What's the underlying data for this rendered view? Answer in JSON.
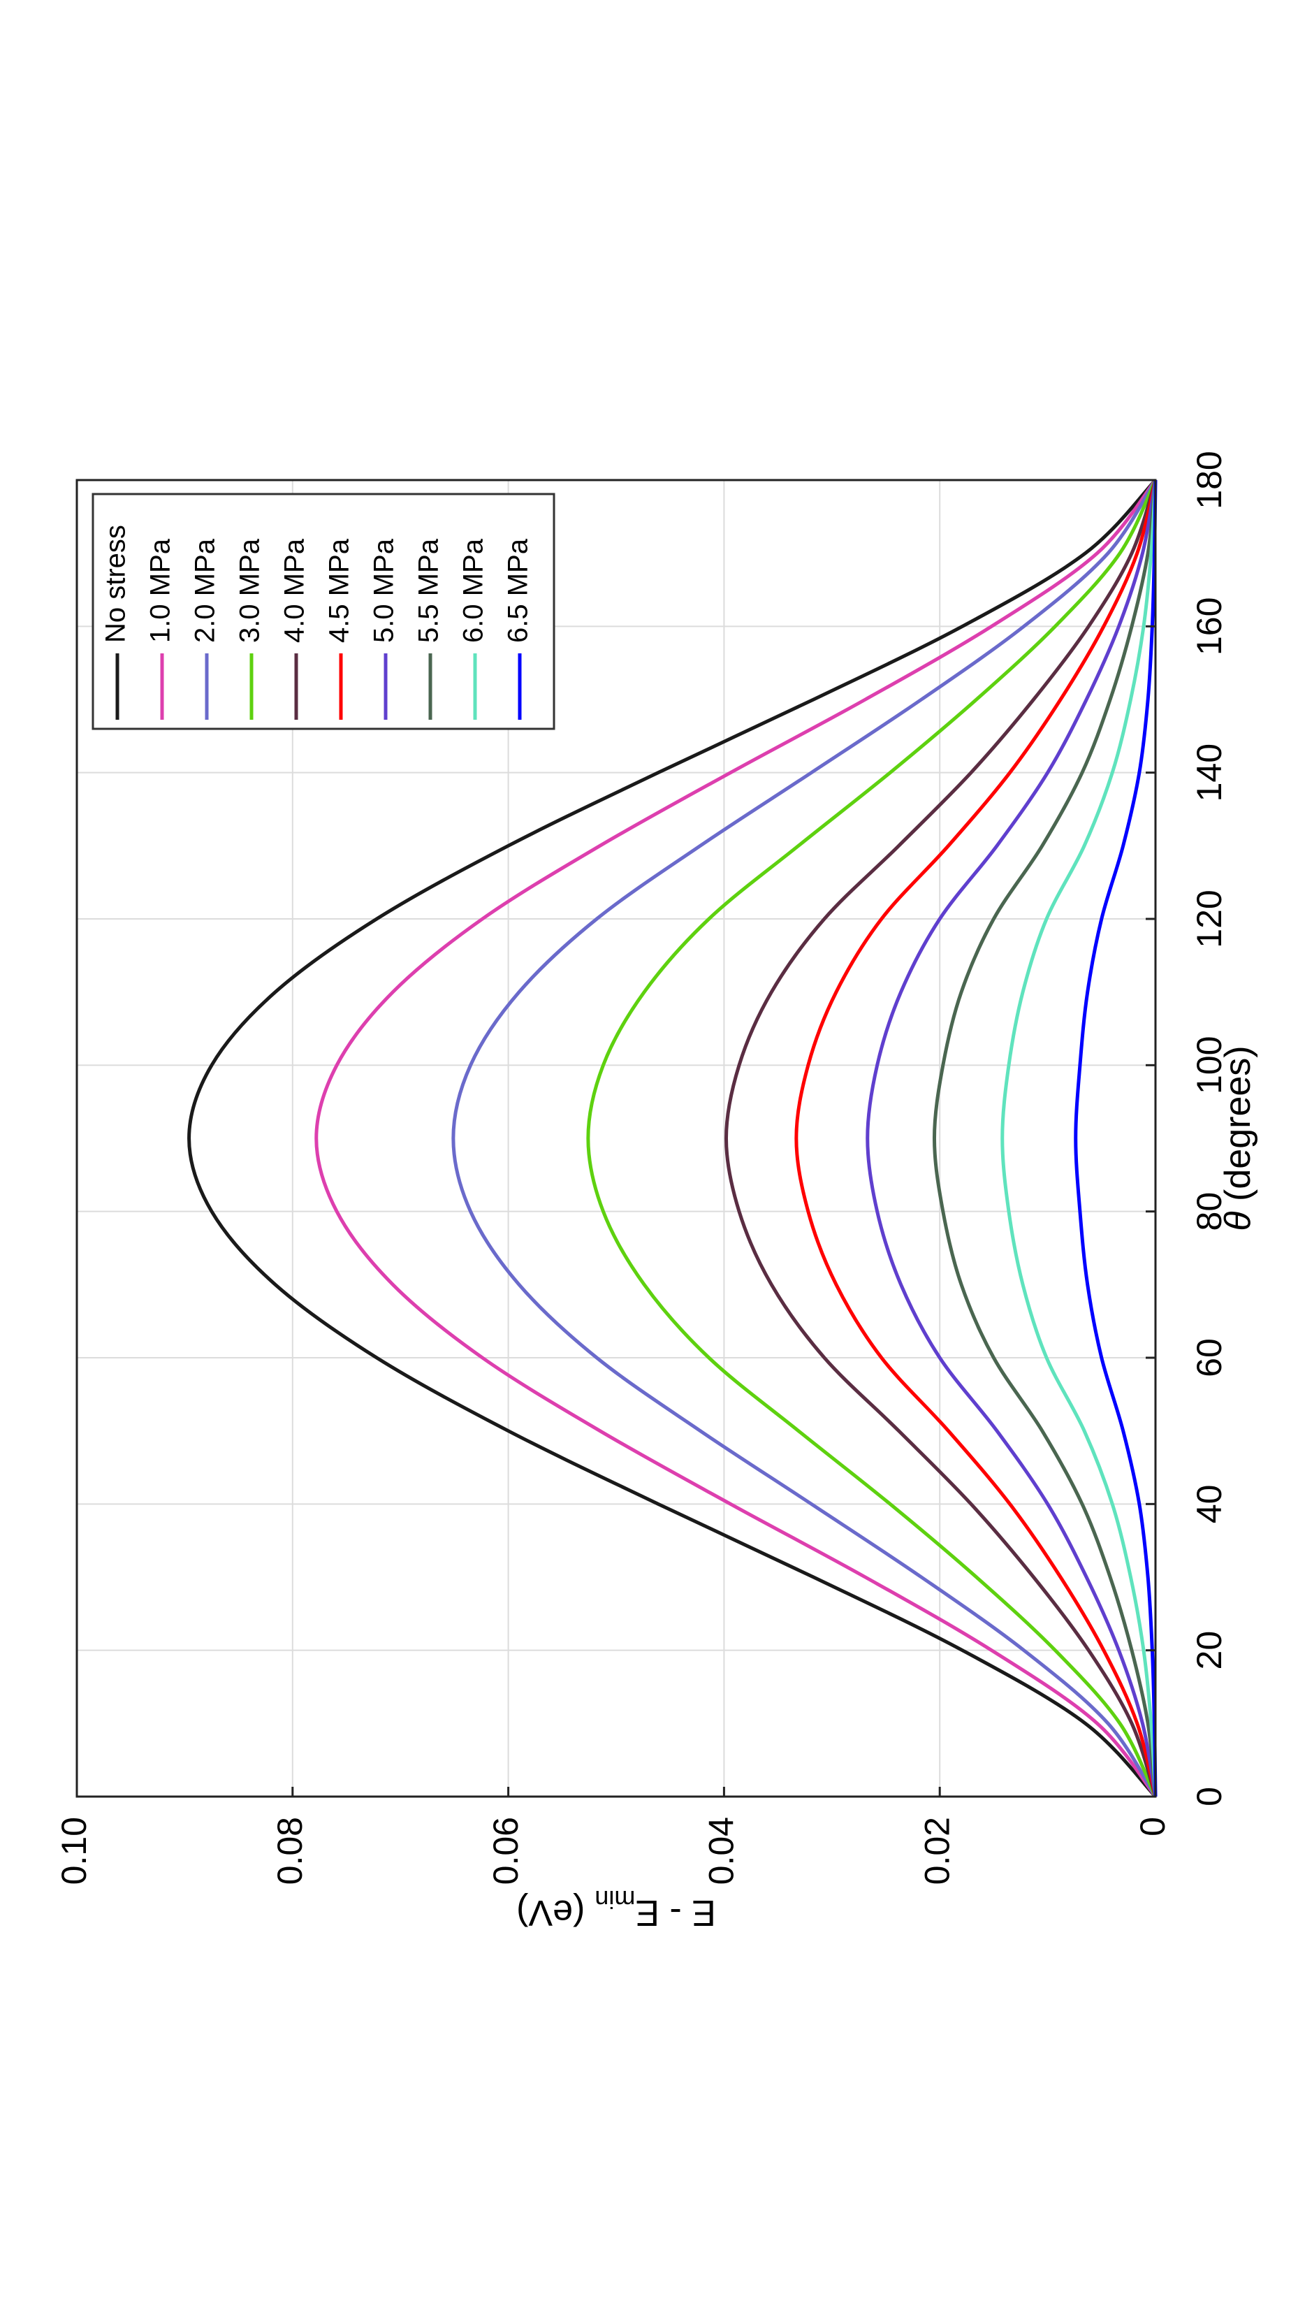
{
  "chart_data": {
    "type": "line",
    "orientation": "rotated 90 degrees counter-clockwise",
    "xlabel": "θ (degrees)",
    "ylabel": {
      "main": "E - E",
      "sub": "min",
      "unit": "(eV)"
    },
    "xlim": [
      0,
      180
    ],
    "ylim": [
      0,
      0.1
    ],
    "xticks": [
      0,
      20,
      40,
      60,
      80,
      100,
      120,
      140,
      160,
      180
    ],
    "xtick_labels": [
      "0",
      "20",
      "40",
      "60",
      "80",
      "100",
      "120",
      "140",
      "160",
      "180"
    ],
    "yticks": [
      0,
      0.02,
      0.04,
      0.06,
      0.08,
      0.1
    ],
    "ytick_labels": [
      "0",
      "0.02",
      "0.04",
      "0.06",
      "0.08",
      "0.10"
    ],
    "grid": true,
    "legend_placement": "upper-left of the rotated plot (top-left on screen)",
    "x": [
      0,
      10,
      20,
      30,
      40,
      50,
      60,
      70,
      80,
      90,
      100,
      110,
      120,
      130,
      140,
      150,
      160,
      170,
      180
    ],
    "series": [
      {
        "name": "No stress",
        "color": "#1a1a1a",
        "values": [
          0,
          0.0065,
          0.0179,
          0.0317,
          0.0461,
          0.06,
          0.0722,
          0.0816,
          0.0875,
          0.0896,
          0.0875,
          0.0816,
          0.0722,
          0.06,
          0.0461,
          0.0317,
          0.0179,
          0.0065,
          0
        ]
      },
      {
        "name": "1.0 MPa",
        "color": "#dd3fae",
        "values": [
          0,
          0.0054,
          0.0152,
          0.0269,
          0.0394,
          0.0515,
          0.0624,
          0.0707,
          0.0759,
          0.0778,
          0.0759,
          0.0707,
          0.0624,
          0.0515,
          0.0394,
          0.0269,
          0.0152,
          0.0054,
          0
        ]
      },
      {
        "name": "2.0 MPa",
        "color": "#6a6acb",
        "values": [
          0,
          0.0044,
          0.0122,
          0.0217,
          0.0319,
          0.0422,
          0.0518,
          0.059,
          0.0635,
          0.0651,
          0.0635,
          0.059,
          0.0518,
          0.0422,
          0.0319,
          0.0217,
          0.0122,
          0.0044,
          0
        ]
      },
      {
        "name": "3.0 MPa",
        "color": "#5ed10f",
        "values": [
          0,
          0.0033,
          0.0093,
          0.0166,
          0.0246,
          0.0331,
          0.0414,
          0.0474,
          0.0512,
          0.0526,
          0.0512,
          0.0474,
          0.0414,
          0.0331,
          0.0246,
          0.0166,
          0.0093,
          0.0033,
          0
        ]
      },
      {
        "name": "4.0 MPa",
        "color": "#5a2d42",
        "values": [
          0,
          0.0022,
          0.0062,
          0.0113,
          0.0171,
          0.0238,
          0.0307,
          0.0356,
          0.0386,
          0.0398,
          0.0386,
          0.0356,
          0.0307,
          0.0238,
          0.0171,
          0.0113,
          0.0062,
          0.0022,
          0
        ]
      },
      {
        "name": "4.5 MPa",
        "color": "#ff0000",
        "values": [
          0,
          0.0017,
          0.0048,
          0.0088,
          0.0135,
          0.0192,
          0.0254,
          0.0296,
          0.0322,
          0.0333,
          0.0322,
          0.0296,
          0.0254,
          0.0192,
          0.0135,
          0.0088,
          0.0048,
          0.0017,
          0
        ]
      },
      {
        "name": "5.0 MPa",
        "color": "#5f3fce",
        "values": [
          0,
          0.0012,
          0.0034,
          0.0064,
          0.01,
          0.0147,
          0.02,
          0.0236,
          0.0258,
          0.0267,
          0.0258,
          0.0236,
          0.02,
          0.0147,
          0.01,
          0.0064,
          0.0034,
          0.0012,
          0
        ]
      },
      {
        "name": "5.5 MPa",
        "color": "#4a6650",
        "values": [
          0,
          0.0007,
          0.0022,
          0.0042,
          0.0068,
          0.0105,
          0.015,
          0.018,
          0.0197,
          0.0205,
          0.0197,
          0.018,
          0.015,
          0.0105,
          0.0068,
          0.0042,
          0.0022,
          0.0007,
          0
        ]
      },
      {
        "name": "6.0 MPa",
        "color": "#5fe3bd",
        "values": [
          0,
          0.0004,
          0.0011,
          0.0023,
          0.004,
          0.0066,
          0.0101,
          0.0123,
          0.0136,
          0.0142,
          0.0136,
          0.0123,
          0.0101,
          0.0066,
          0.004,
          0.0023,
          0.0011,
          0.0004,
          0
        ]
      },
      {
        "name": "6.5 MPa",
        "color": "#0000ff",
        "values": [
          0,
          0.0001,
          0.0003,
          0.0007,
          0.0015,
          0.003,
          0.005,
          0.0063,
          0.007,
          0.0074,
          0.007,
          0.0063,
          0.005,
          0.003,
          0.0015,
          0.0007,
          0.0003,
          0.0001,
          0
        ]
      }
    ]
  }
}
